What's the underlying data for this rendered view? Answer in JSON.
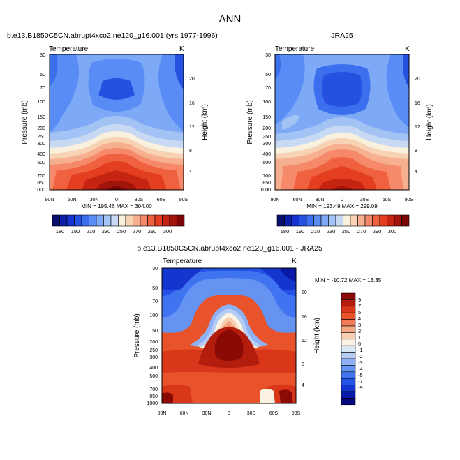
{
  "figure": {
    "title": "ANN"
  },
  "chart_data": [
    {
      "type": "heatmap",
      "id": "model",
      "subtitle": "b.e13.B1850C5CN.abrupt4xco2.ne120_g16.001 (yrs 1977-1996)",
      "left_label": "Temperature",
      "units": "K",
      "ylabel": "Pressure (mb)",
      "y2label": "Height (km)",
      "x_ticks": [
        "90N",
        "60N",
        "30N",
        "0",
        "30S",
        "60S",
        "90S"
      ],
      "y_ticks": [
        "30",
        "50",
        "70",
        "100",
        "150",
        "200",
        "250",
        "300",
        "400",
        "500",
        "700",
        "850",
        "1000"
      ],
      "y2_ticks": [
        "20",
        "16",
        "12",
        "8",
        "4"
      ],
      "ylim": [
        1000,
        30
      ],
      "stats": "MIN = 195.46  MAX = 304.00",
      "min": 195.46,
      "max": 304.0,
      "colorbar_labels": [
        "180",
        "190",
        "210",
        "230",
        "250",
        "270",
        "290",
        "300"
      ]
    },
    {
      "type": "heatmap",
      "id": "obs",
      "subtitle": "JRA25",
      "left_label": "Temperature",
      "units": "K",
      "ylabel": "Pressure (mb)",
      "y2label": "Height (km)",
      "x_ticks": [
        "90N",
        "60N",
        "30N",
        "0",
        "30S",
        "60S",
        "90S"
      ],
      "y_ticks": [
        "30",
        "50",
        "70",
        "100",
        "150",
        "200",
        "250",
        "300",
        "400",
        "500",
        "700",
        "850",
        "1000"
      ],
      "y2_ticks": [
        "20",
        "16",
        "12",
        "8",
        "4"
      ],
      "ylim": [
        1000,
        30
      ],
      "stats": "MIN = 193.49  MAX = 299.09",
      "min": 193.49,
      "max": 299.09,
      "colorbar_labels": [
        "180",
        "190",
        "210",
        "230",
        "250",
        "270",
        "290",
        "300"
      ]
    },
    {
      "type": "heatmap",
      "id": "diff",
      "subtitle": "b.e13.B1850C5CN.abrupt4xco2.ne120_g16.001 - JRA25",
      "left_label": "Temperature",
      "units": "K",
      "ylabel": "Pressure (mb)",
      "y2label": "Height (km)",
      "x_ticks": [
        "90N",
        "60N",
        "30N",
        "0",
        "30S",
        "60S",
        "90S"
      ],
      "y_ticks": [
        "30",
        "50",
        "70",
        "100",
        "150",
        "200",
        "250",
        "300",
        "400",
        "500",
        "700",
        "850",
        "1000"
      ],
      "y2_ticks": [
        "20",
        "16",
        "12",
        "8",
        "4"
      ],
      "ylim": [
        1000,
        30
      ],
      "stats": "MIN = -10.72  MAX =  13.35",
      "min": -10.72,
      "max": 13.35,
      "colorbar_labels": [
        "9",
        "7",
        "5",
        "4",
        "3",
        "2",
        "1",
        "0",
        "-1",
        "-2",
        "-3",
        "-4",
        "-5",
        "-7",
        "-9"
      ]
    }
  ],
  "colors": {
    "temperature_scale": [
      "#08106b",
      "#0b1fa8",
      "#1632cf",
      "#2650e0",
      "#3c6fee",
      "#5a8cf5",
      "#7ea9f6",
      "#a3c3f4",
      "#c8daf3",
      "#f9f0dd",
      "#f8d2b4",
      "#f7b08f",
      "#f5896a",
      "#f0613f",
      "#e23e1f",
      "#c52412",
      "#a0140c",
      "#7a0606"
    ],
    "difference_scale": [
      "#05087a",
      "#0a1aa6",
      "#1535cf",
      "#2552e6",
      "#3f73f0",
      "#6493f2",
      "#8db1f3",
      "#b5cdf4",
      "#dbe6f5",
      "#fbf2e3",
      "#f8ceb0",
      "#f5a685",
      "#f07b56",
      "#e8532c",
      "#d9361a",
      "#b31d0e",
      "#8a0a05"
    ]
  }
}
